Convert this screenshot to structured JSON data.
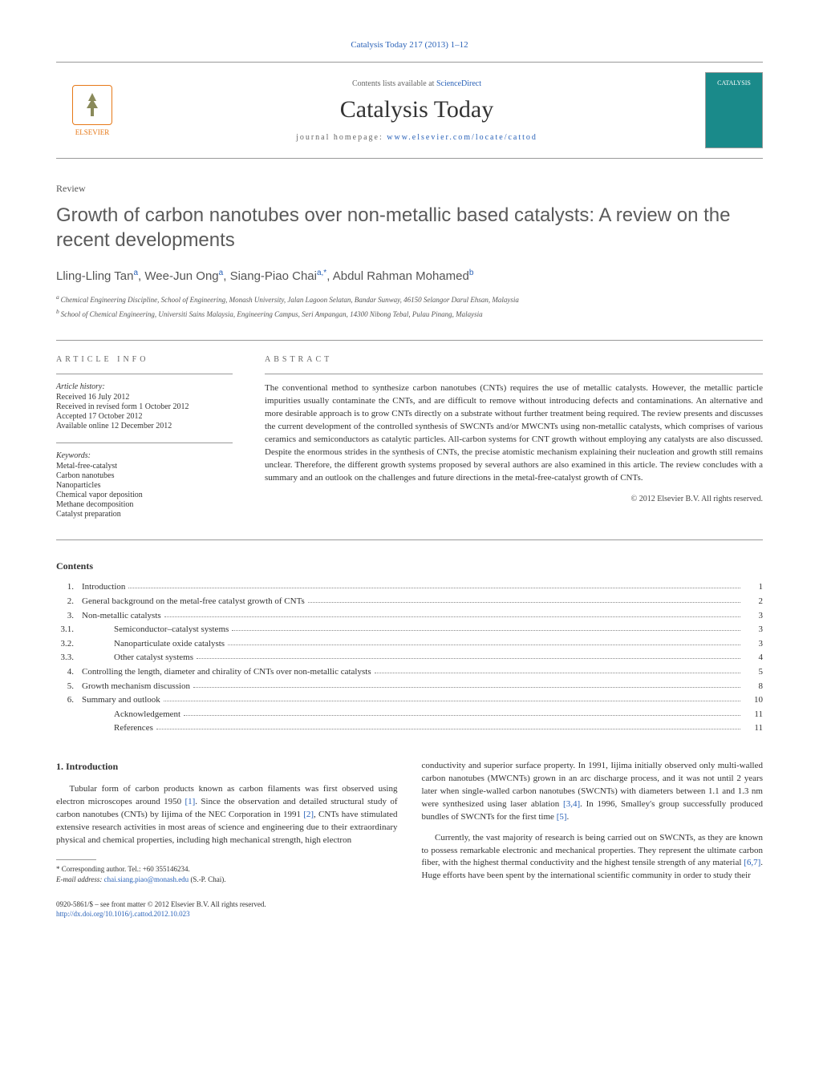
{
  "journal_ref": "Catalysis Today 217 (2013) 1–12",
  "header": {
    "elsevier": "ELSEVIER",
    "contents_at": "Contents lists available at ",
    "sciencedirect": "ScienceDirect",
    "journal_name": "Catalysis Today",
    "homepage_label": "journal homepage: ",
    "homepage_url": "www.elsevier.com/locate/cattod",
    "cover_text": "CATALYSIS"
  },
  "article_type": "Review",
  "title": "Growth of carbon nanotubes over non-metallic based catalysts: A review on the recent developments",
  "authors": [
    {
      "name": "Lling-Lling Tan",
      "sup": "a"
    },
    {
      "name": "Wee-Jun Ong",
      "sup": "a"
    },
    {
      "name": "Siang-Piao Chai",
      "sup": "a,*"
    },
    {
      "name": "Abdul Rahman Mohamed",
      "sup": "b"
    }
  ],
  "affiliations": [
    {
      "sup": "a",
      "text": "Chemical Engineering Discipline, School of Engineering, Monash University, Jalan Lagoon Selatan, Bandar Sunway, 46150 Selangor Darul Ehsan, Malaysia"
    },
    {
      "sup": "b",
      "text": "School of Chemical Engineering, Universiti Sains Malaysia, Engineering Campus, Seri Ampangan, 14300 Nibong Tebal, Pulau Pinang, Malaysia"
    }
  ],
  "info": {
    "label": "article info",
    "history_label": "Article history:",
    "history": [
      "Received 16 July 2012",
      "Received in revised form 1 October 2012",
      "Accepted 17 October 2012",
      "Available online 12 December 2012"
    ],
    "keywords_label": "Keywords:",
    "keywords": [
      "Metal-free-catalyst",
      "Carbon nanotubes",
      "Nanoparticles",
      "Chemical vapor deposition",
      "Methane decomposition",
      "Catalyst preparation"
    ]
  },
  "abstract": {
    "label": "abstract",
    "text": "The conventional method to synthesize carbon nanotubes (CNTs) requires the use of metallic catalysts. However, the metallic particle impurities usually contaminate the CNTs, and are difficult to remove without introducing defects and contaminations. An alternative and more desirable approach is to grow CNTs directly on a substrate without further treatment being required. The review presents and discusses the current development of the controlled synthesis of SWCNTs and/or MWCNTs using non-metallic catalysts, which comprises of various ceramics and semiconductors as catalytic particles. All-carbon systems for CNT growth without employing any catalysts are also discussed. Despite the enormous strides in the synthesis of CNTs, the precise atomistic mechanism explaining their nucleation and growth still remains unclear. Therefore, the different growth systems proposed by several authors are also examined in this article. The review concludes with a summary and an outlook on the challenges and future directions in the metal-free-catalyst growth of CNTs.",
    "copyright": "© 2012 Elsevier B.V. All rights reserved."
  },
  "contents": {
    "heading": "Contents",
    "items": [
      {
        "num": "1.",
        "label": "Introduction",
        "page": "1",
        "indent": 0
      },
      {
        "num": "2.",
        "label": "General background on the metal-free catalyst growth of CNTs",
        "page": "2",
        "indent": 0
      },
      {
        "num": "3.",
        "label": "Non-metallic catalysts",
        "page": "3",
        "indent": 0
      },
      {
        "num": "3.1.",
        "label": "Semiconductor–catalyst systems",
        "page": "3",
        "indent": 1
      },
      {
        "num": "3.2.",
        "label": "Nanoparticulate oxide catalysts",
        "page": "3",
        "indent": 1
      },
      {
        "num": "3.3.",
        "label": "Other catalyst systems",
        "page": "4",
        "indent": 1
      },
      {
        "num": "4.",
        "label": "Controlling the length, diameter and chirality of CNTs over non-metallic catalysts",
        "page": "5",
        "indent": 0
      },
      {
        "num": "5.",
        "label": "Growth mechanism discussion",
        "page": "8",
        "indent": 0
      },
      {
        "num": "6.",
        "label": "Summary and outlook",
        "page": "10",
        "indent": 0
      },
      {
        "num": "",
        "label": "Acknowledgement",
        "page": "11",
        "indent": 1
      },
      {
        "num": "",
        "label": "References",
        "page": "11",
        "indent": 1
      }
    ]
  },
  "body": {
    "heading": "1.  Introduction",
    "left_p1_pre": "Tubular form of carbon products known as carbon filaments was first observed using electron microscopes around 1950 ",
    "ref1": "[1]",
    "left_p1_mid": ". Since the observation and detailed structural study of carbon nanotubes (CNTs) by Iijima of the NEC Corporation in 1991 ",
    "ref2": "[2]",
    "left_p1_post": ", CNTs have stimulated extensive research activities in most areas of science and engineering due to their extraordinary physical and chemical properties, including high mechanical strength, high electron",
    "right_p1_pre": "conductivity and superior surface property. In 1991, Iijima initially observed only multi-walled carbon nanotubes (MWCNTs) grown in an arc discharge process, and it was not until 2 years later when single-walled carbon nanotubes (SWCNTs) with diameters between 1.1 and 1.3 nm were synthesized using laser ablation ",
    "ref34": "[3,4]",
    "right_p1_mid": ". In 1996, Smalley's group successfully produced bundles of SWCNTs for the first time ",
    "ref5": "[5]",
    "right_p1_post": ".",
    "right_p2_pre": "Currently, the vast majority of research is being carried out on SWCNTs, as they are known to possess remarkable electronic and mechanical properties. They represent the ultimate carbon fiber, with the highest thermal conductivity and the highest tensile strength of any material ",
    "ref67": "[6,7]",
    "right_p2_post": ". Huge efforts have been spent by the international scientific community in order to study their"
  },
  "footnote": {
    "corr": "* Corresponding author. Tel.: +60 355146234.",
    "email_label": "E-mail address: ",
    "email": "chai.siang.piao@monash.edu",
    "email_who": " (S.-P. Chai)."
  },
  "footer": {
    "line1": "0920-5861/$ – see front matter © 2012 Elsevier B.V. All rights reserved.",
    "doi": "http://dx.doi.org/10.1016/j.cattod.2012.10.023"
  }
}
